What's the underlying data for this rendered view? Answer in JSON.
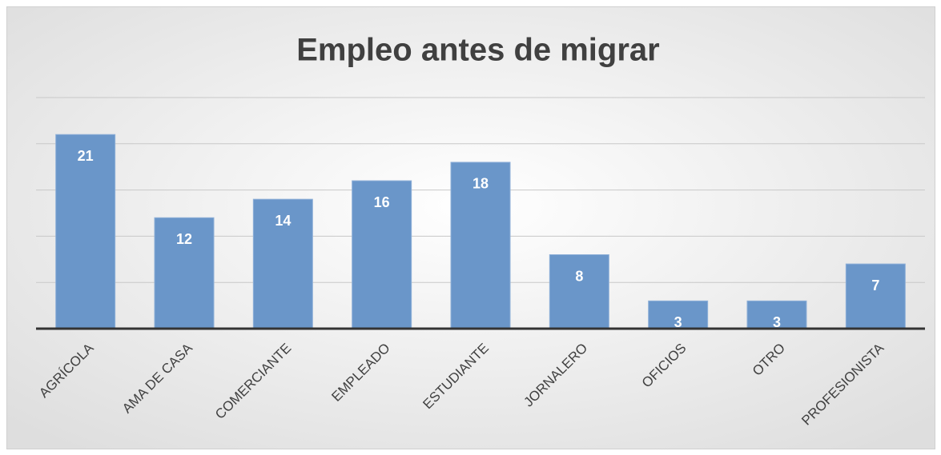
{
  "chart_data": {
    "type": "bar",
    "title": "Empleo antes de migrar",
    "categories": [
      "AGRÍCOLA",
      "AMA DE CASA",
      "COMERCIANTE",
      "EMPLEADO",
      "ESTUDIANTE",
      "JORNALERO",
      "OFICIOS",
      "OTRO",
      "PROFESIONISTA"
    ],
    "values": [
      21,
      12,
      14,
      16,
      18,
      8,
      3,
      3,
      7
    ],
    "color": "#6a96c9",
    "ylim": [
      0,
      25
    ],
    "yticks": [
      0,
      5,
      10,
      15,
      20,
      25
    ],
    "grid": true
  }
}
